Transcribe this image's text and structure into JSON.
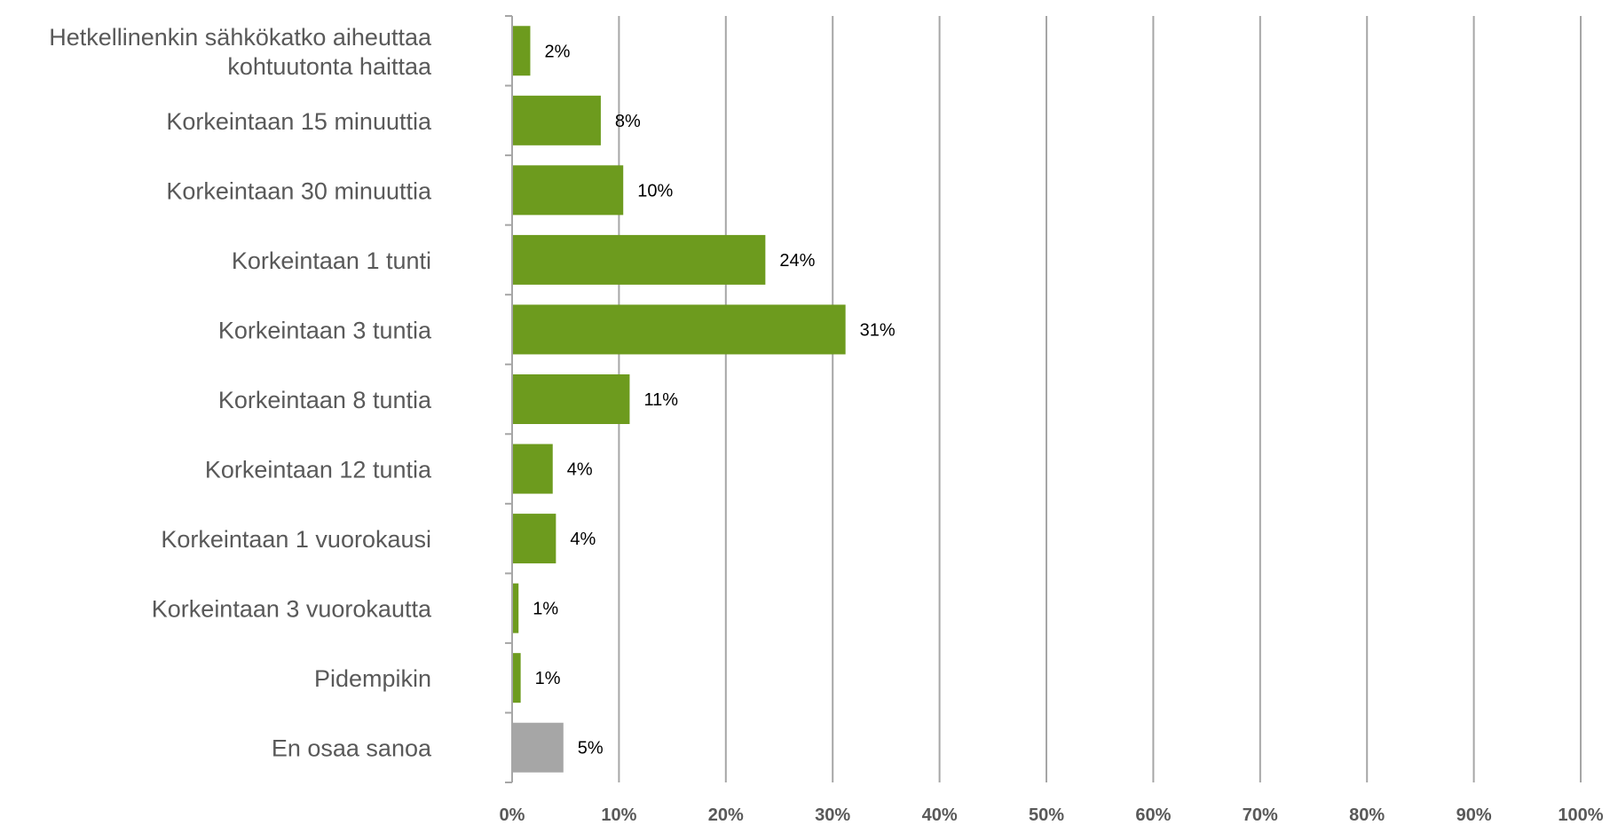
{
  "chart_data": {
    "type": "bar",
    "orientation": "horizontal",
    "categories": [
      [
        "Hetkellinenkin sähkökatko aiheuttaa",
        "kohtuutonta haittaa"
      ],
      [
        "Korkeintaan 15 minuuttia"
      ],
      [
        "Korkeintaan 30 minuuttia"
      ],
      [
        "Korkeintaan 1 tunti"
      ],
      [
        "Korkeintaan 3 tuntia"
      ],
      [
        "Korkeintaan 8 tuntia"
      ],
      [
        "Korkeintaan 12 tuntia"
      ],
      [
        "Korkeintaan 1 vuorokausi"
      ],
      [
        "Korkeintaan 3 vuorokautta"
      ],
      [
        "Pidempikin"
      ],
      [
        "En osaa sanoa"
      ]
    ],
    "values": [
      1.7,
      8.3,
      10.4,
      23.7,
      31.2,
      11.0,
      3.8,
      4.1,
      0.6,
      0.8,
      4.8
    ],
    "value_labels": [
      "2%",
      "8%",
      "10%",
      "24%",
      "31%",
      "11%",
      "4%",
      "4%",
      "1%",
      "1%",
      "5%"
    ],
    "bar_colors": [
      "#6d9b1e",
      "#6d9b1e",
      "#6d9b1e",
      "#6d9b1e",
      "#6d9b1e",
      "#6d9b1e",
      "#6d9b1e",
      "#6d9b1e",
      "#6d9b1e",
      "#6d9b1e",
      "#a6a6a6"
    ],
    "x_ticks": [
      "0%",
      "10%",
      "20%",
      "30%",
      "40%",
      "50%",
      "60%",
      "70%",
      "80%",
      "90%",
      "100%"
    ],
    "xlim": [
      0,
      100
    ],
    "grid": true,
    "gridline_color": "#a6a6a6",
    "title": "",
    "xlabel": "",
    "ylabel": ""
  }
}
